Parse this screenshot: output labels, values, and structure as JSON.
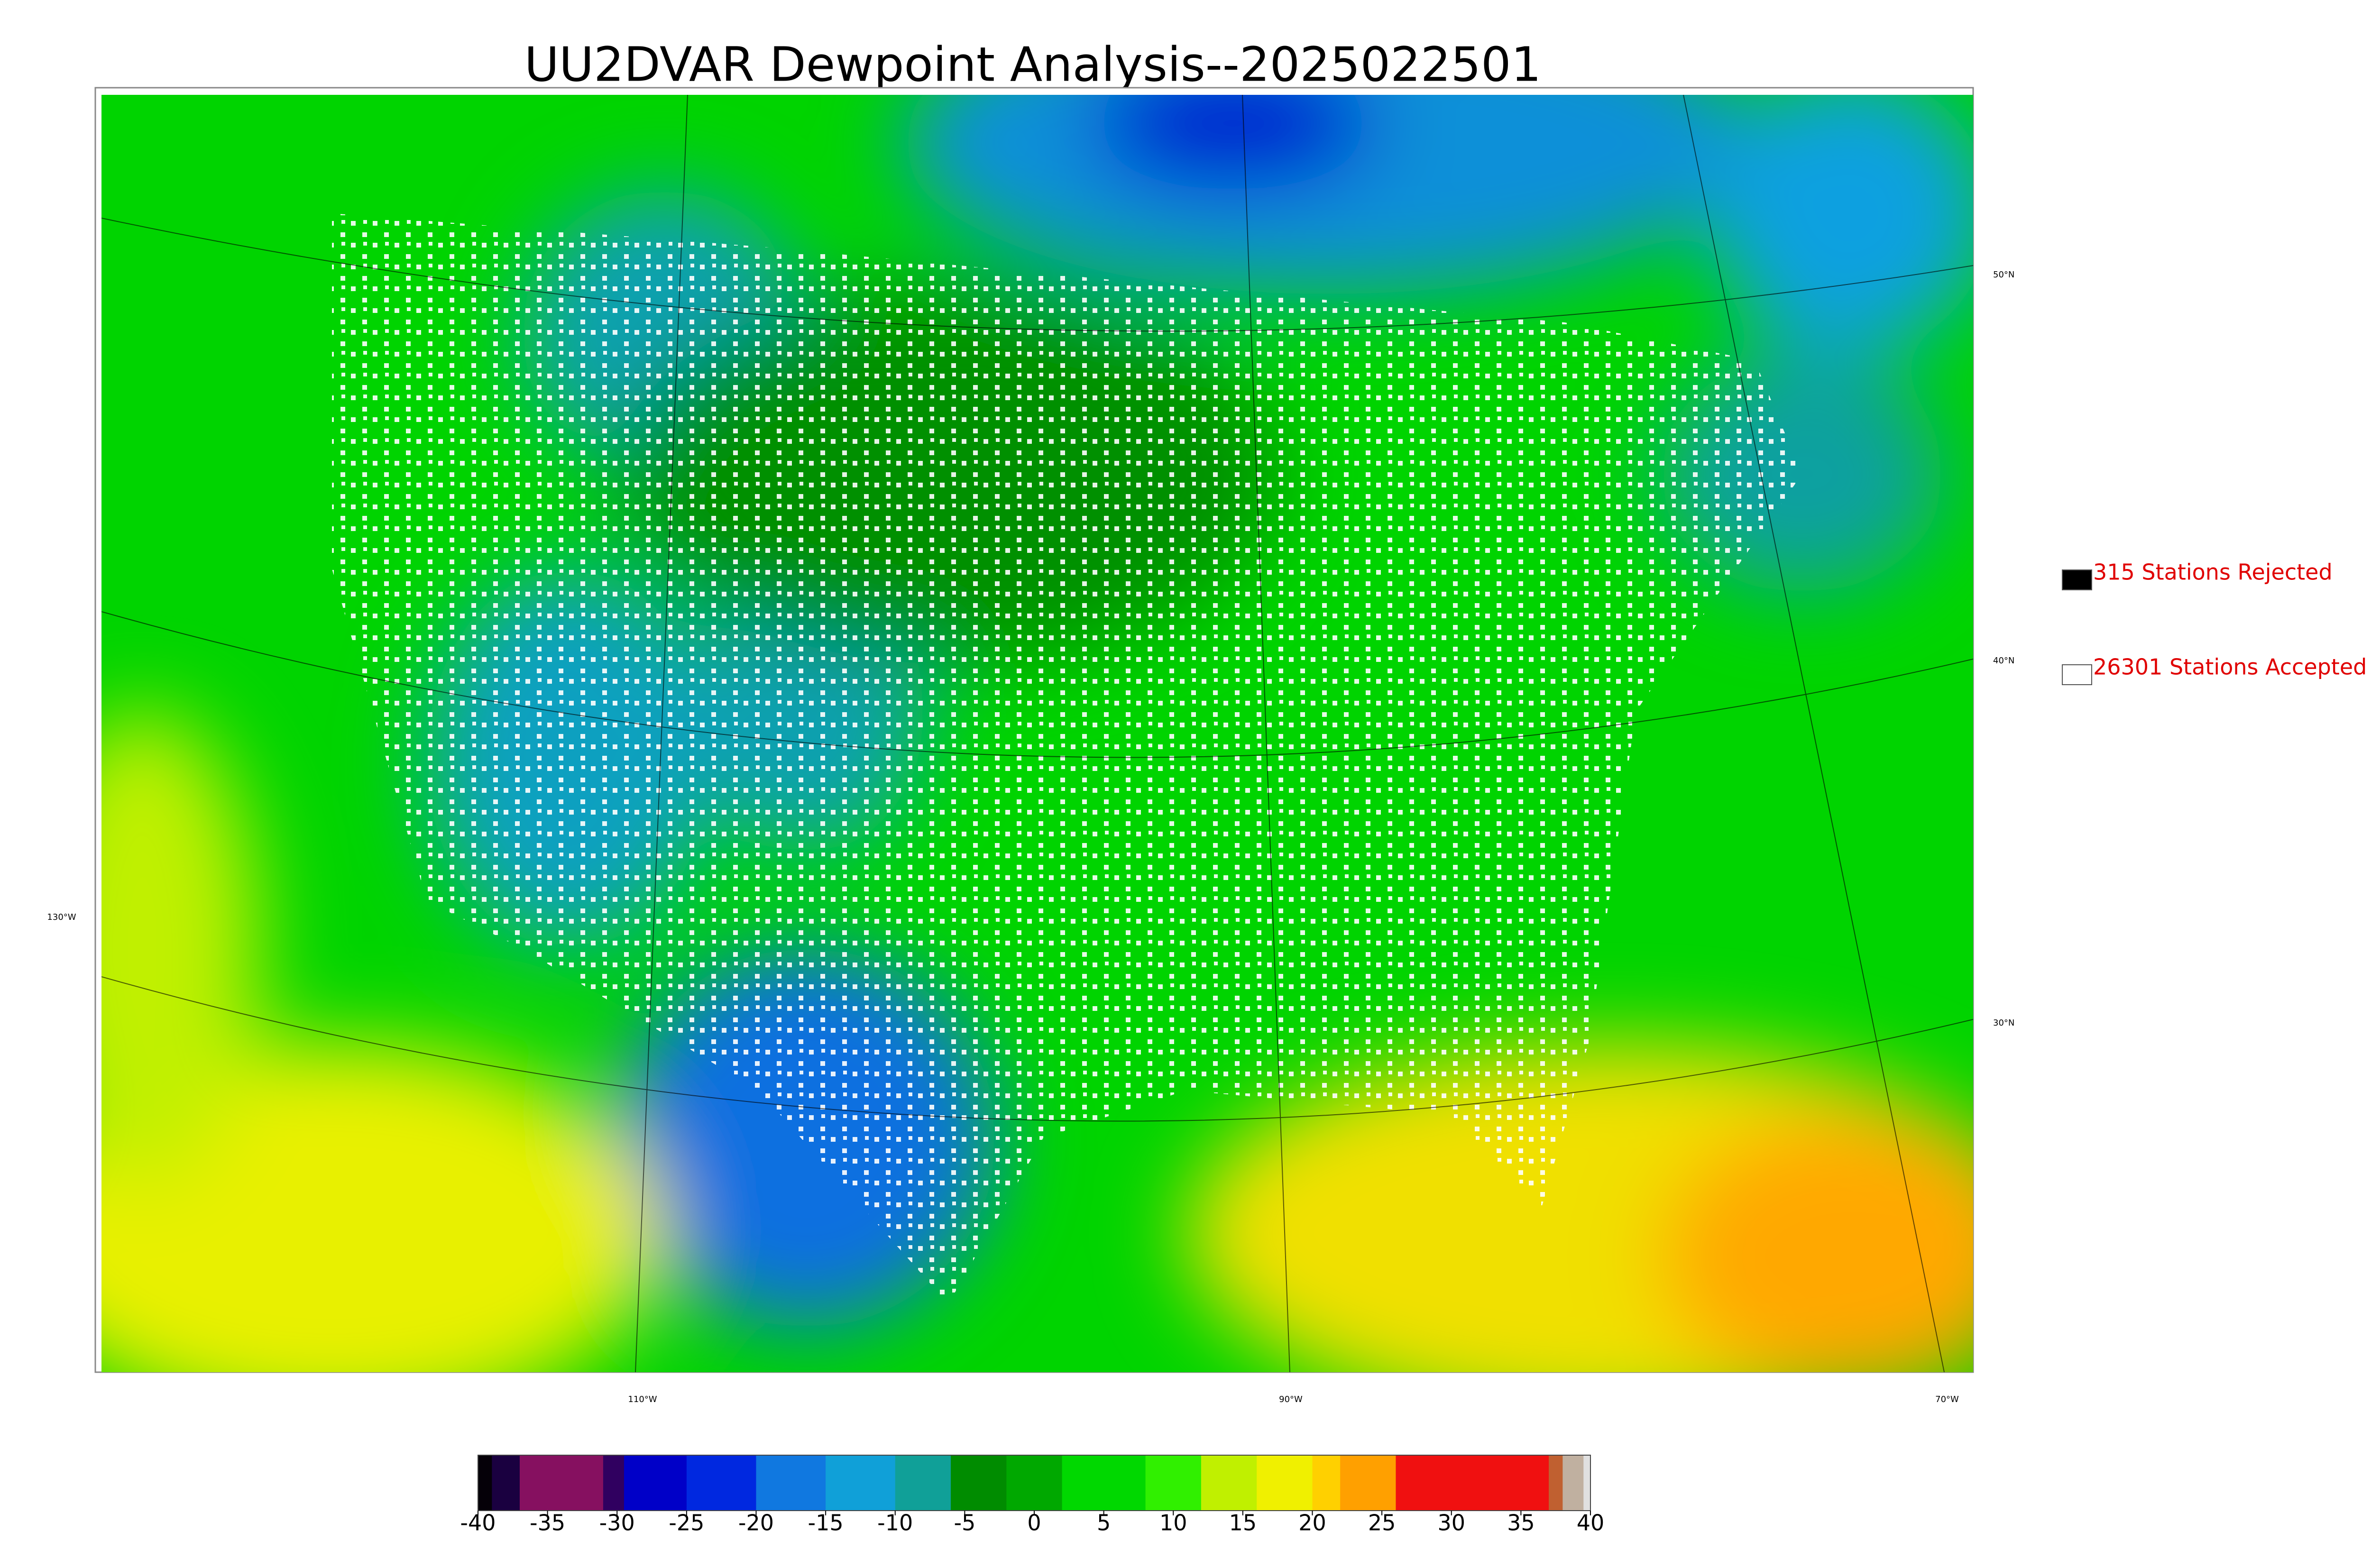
{
  "title": "UU2DVAR Dewpoint Analysis--2025022501",
  "legend": [
    {
      "label": "315 Stations Rejected",
      "color": "#000000"
    },
    {
      "label": "26301 Stations Accepted",
      "color": "#ffffff"
    }
  ],
  "latitude_labels": [
    "50°N",
    "40°N",
    "30°N"
  ],
  "longitude_labels": [
    "130°W",
    "110°W",
    "90°W",
    "70°W"
  ],
  "colorbar": {
    "range": [
      -40,
      40
    ],
    "ticks": [
      -40,
      -35,
      -30,
      -25,
      -20,
      -15,
      -10,
      -5,
      0,
      5,
      10,
      15,
      20,
      25,
      30,
      35,
      40
    ],
    "segments": [
      {
        "from": -40,
        "color": "#050008"
      },
      {
        "from": -39,
        "color": "#1a0040"
      },
      {
        "from": -37,
        "color": "#861060"
      },
      {
        "from": -31,
        "color": "#300060"
      },
      {
        "from": -29.5,
        "color": "#0000c8"
      },
      {
        "from": -25,
        "color": "#0028e0"
      },
      {
        "from": -20,
        "color": "#1078e0"
      },
      {
        "from": -15,
        "color": "#10a0d8"
      },
      {
        "from": -10,
        "color": "#10a098"
      },
      {
        "from": -6,
        "color": "#008c00"
      },
      {
        "from": -2,
        "color": "#00a800"
      },
      {
        "from": 2,
        "color": "#00d800"
      },
      {
        "from": 8,
        "color": "#30f000"
      },
      {
        "from": 12,
        "color": "#c0f000"
      },
      {
        "from": 16,
        "color": "#f0f000"
      },
      {
        "from": 20,
        "color": "#ffd000"
      },
      {
        "from": 22,
        "color": "#ffa000"
      },
      {
        "from": 26,
        "color": "#f01010"
      },
      {
        "from": 37,
        "color": "#c06030"
      },
      {
        "from": 38,
        "color": "#c0b0a0"
      },
      {
        "from": 39.5,
        "color": "#e0e0e0"
      }
    ]
  }
}
